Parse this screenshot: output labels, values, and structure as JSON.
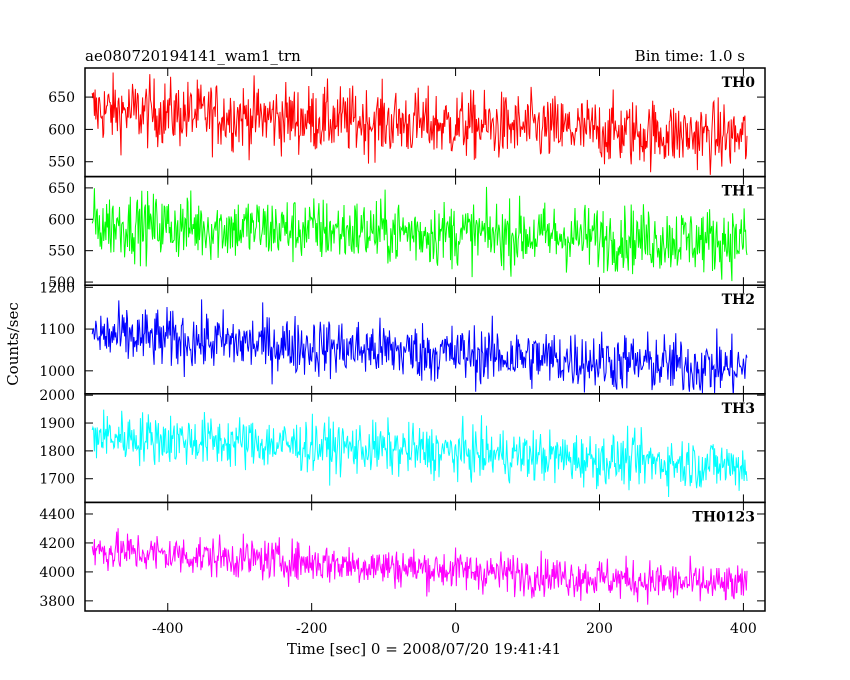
{
  "chart_data": {
    "type": "line",
    "title": "ae080720194141_wam1_trn",
    "subtitle": "Bin time: 1.0 s",
    "xlabel": "Time [sec] 0 = 2008/07/20 19:41:41",
    "ylabel": "Counts/sec",
    "xlim": [
      -515,
      430
    ],
    "xticks": [
      -400,
      -200,
      0,
      200,
      400
    ],
    "x_start": -505,
    "x_end": 405,
    "bin_time": 1.0,
    "grid": false,
    "panels": [
      {
        "name": "TH0",
        "color": "#ff0000",
        "ylim": [
          527,
          695
        ],
        "yticks": [
          550,
          600,
          650
        ],
        "trend": [
          630,
          588
        ],
        "noise": 28
      },
      {
        "name": "TH1",
        "color": "#00ff00",
        "ylim": [
          495,
          668
        ],
        "yticks": [
          500,
          550,
          600,
          650
        ],
        "trend": [
          592,
          565
        ],
        "noise": 28
      },
      {
        "name": "TH2",
        "color": "#0000ff",
        "ylim": [
          945,
          1205
        ],
        "yticks": [
          1000,
          1100,
          1200
        ],
        "trend": [
          1085,
          1005
        ],
        "noise": 38
      },
      {
        "name": "TH3",
        "color": "#00ffff",
        "ylim": [
          1615,
          2005
        ],
        "yticks": [
          1700,
          1800,
          1900,
          2000
        ],
        "trend": [
          1855,
          1745
        ],
        "noise": 50
      },
      {
        "name": "TH0123",
        "color": "#ff00ff",
        "ylim": [
          3730,
          4480
        ],
        "yticks": [
          3800,
          4000,
          4200,
          4400
        ],
        "trend": [
          4150,
          3900
        ],
        "noise": 75
      }
    ]
  }
}
